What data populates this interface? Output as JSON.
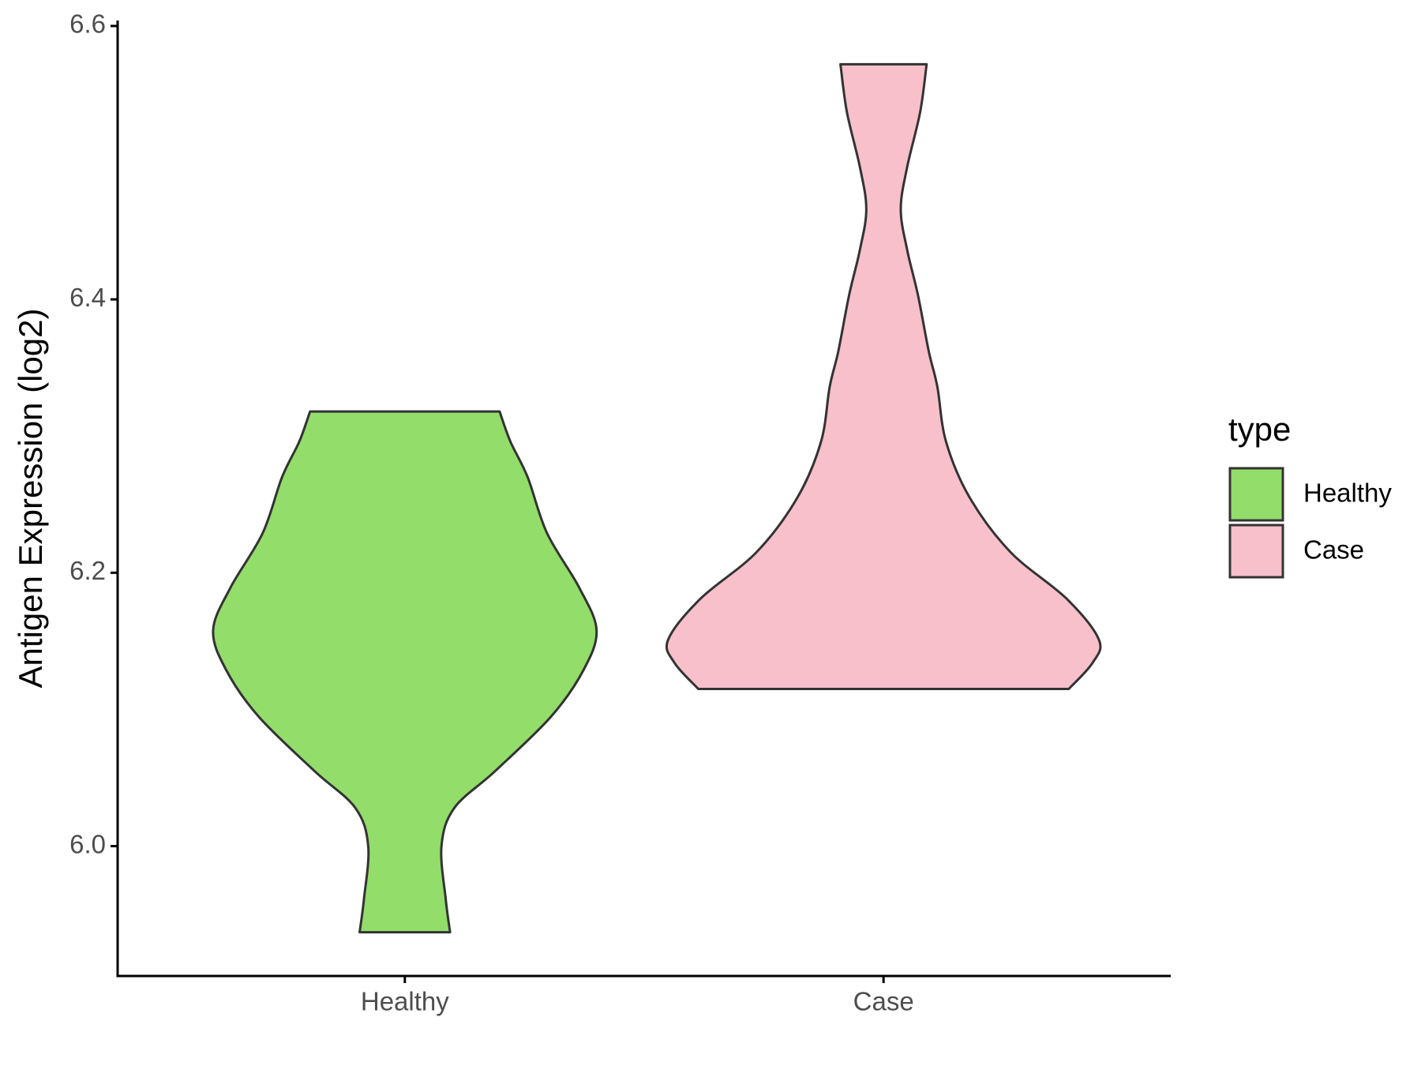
{
  "chart_data": {
    "type": "violin",
    "y_label": "Antigen Expression (log2)",
    "legend_title": "type",
    "legend_position": "right",
    "categories": [
      "Healthy",
      "Case"
    ],
    "series": [
      {
        "name": "Healthy",
        "color": "#93dd6a",
        "y": [
          5.937,
          5.961,
          6.0,
          6.028,
          6.055,
          6.095,
          6.129,
          6.158,
          6.189,
          6.229,
          6.27,
          6.296,
          6.318
        ],
        "density": [
          0.21,
          0.19,
          0.17,
          0.23,
          0.42,
          0.68,
          0.83,
          0.89,
          0.81,
          0.66,
          0.57,
          0.49,
          0.44
        ]
      },
      {
        "name": "Case",
        "color": "#f7c0cb",
        "y": [
          6.115,
          6.134,
          6.151,
          6.181,
          6.215,
          6.255,
          6.296,
          6.336,
          6.362,
          6.403,
          6.436,
          6.466,
          6.497,
          6.537,
          6.572
        ],
        "density": [
          0.86,
          0.97,
          1.0,
          0.85,
          0.59,
          0.4,
          0.29,
          0.25,
          0.21,
          0.16,
          0.11,
          0.08,
          0.11,
          0.17,
          0.2
        ]
      }
    ],
    "ylim": [
      5.905,
      6.604
    ],
    "yticks": [
      {
        "value": 6.0,
        "label": "6.0"
      },
      {
        "value": 6.2,
        "label": "6.2"
      },
      {
        "value": 6.4,
        "label": "6.4"
      },
      {
        "value": 6.6,
        "label": "6.6"
      }
    ],
    "grid": false
  }
}
